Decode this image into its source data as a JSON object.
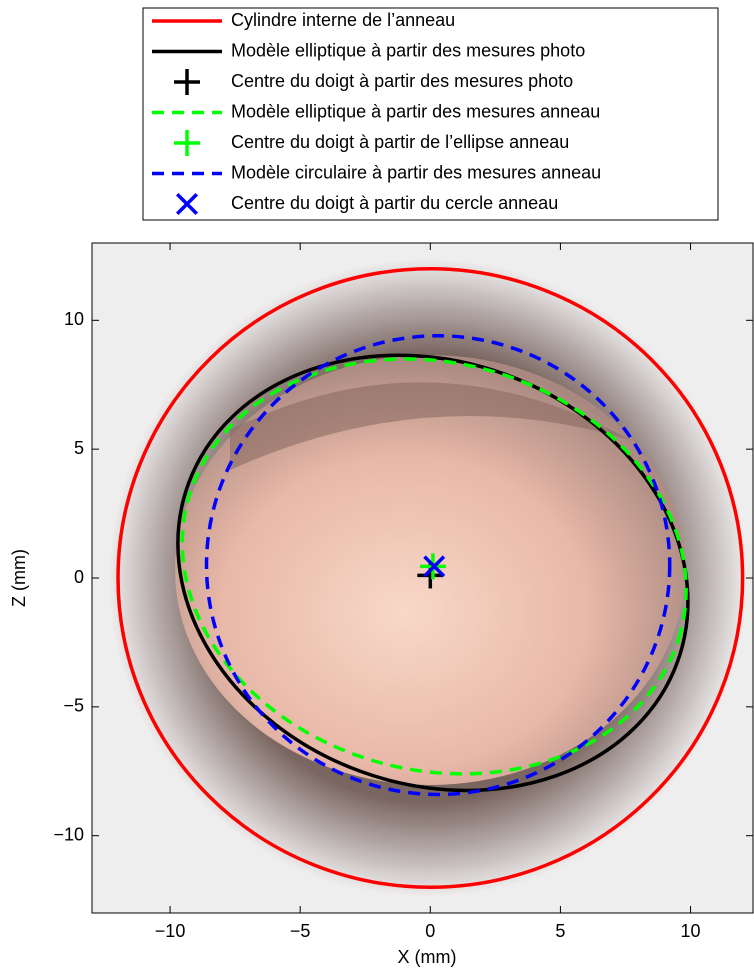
{
  "chart_data": {
    "type": "scatter",
    "xlabel": "X (mm)",
    "ylabel": "Z (mm)",
    "xlim": [
      -13,
      12.4
    ],
    "ylim": [
      -13,
      13
    ],
    "xticks": [
      {
        "value": -10,
        "label": "−10"
      },
      {
        "value": -5,
        "label": "−5"
      },
      0,
      5,
      10
    ],
    "yticks": [
      {
        "value": -10,
        "label": "−10"
      },
      {
        "value": -5,
        "label": "−5"
      },
      0,
      5,
      10
    ],
    "legend": "top",
    "series": [
      {
        "name": "Cylindre interne de l’anneau",
        "color": "#ff0000",
        "line": "solid",
        "shape": "circle",
        "center": [
          0,
          0
        ],
        "radius": 12
      },
      {
        "name": "Modèle elliptique à partir des mesures photo",
        "color": "#000000",
        "line": "solid",
        "shape": "ellipse",
        "center": [
          0.1,
          0.2
        ],
        "semi_axes": [
          10,
          8.2
        ],
        "angle": -20
      },
      {
        "name": "Centre du doigt à partir des mesures photo",
        "color": "#000000",
        "shape": "marker",
        "marker": "plus",
        "x": [
          0
        ],
        "values": [
          0.1
        ]
      },
      {
        "name": "Modèle elliptique à partir des mesures anneau",
        "color": "#00ff00",
        "line": "dashed",
        "shape": "ellipse",
        "center": [
          0.15,
          0.45
        ],
        "semi_axes": [
          9.8,
          7.9
        ],
        "angle": -15
      },
      {
        "name": "Centre du doigt à partir de l’ellipse anneau",
        "color": "#00ff00",
        "shape": "marker",
        "marker": "plus",
        "x": [
          0.1
        ],
        "values": [
          0.45
        ]
      },
      {
        "name": "Modèle circulaire à partir des mesures anneau",
        "color": "#0000ff",
        "line": "dashed",
        "shape": "circle",
        "center": [
          0.3,
          0.5
        ],
        "radius": 8.9
      },
      {
        "name": "Centre du doigt à partir du cercle anneau",
        "color": "#0000ff",
        "shape": "marker",
        "marker": "cross",
        "x": [
          0.15
        ],
        "values": [
          0.45
        ]
      }
    ]
  }
}
